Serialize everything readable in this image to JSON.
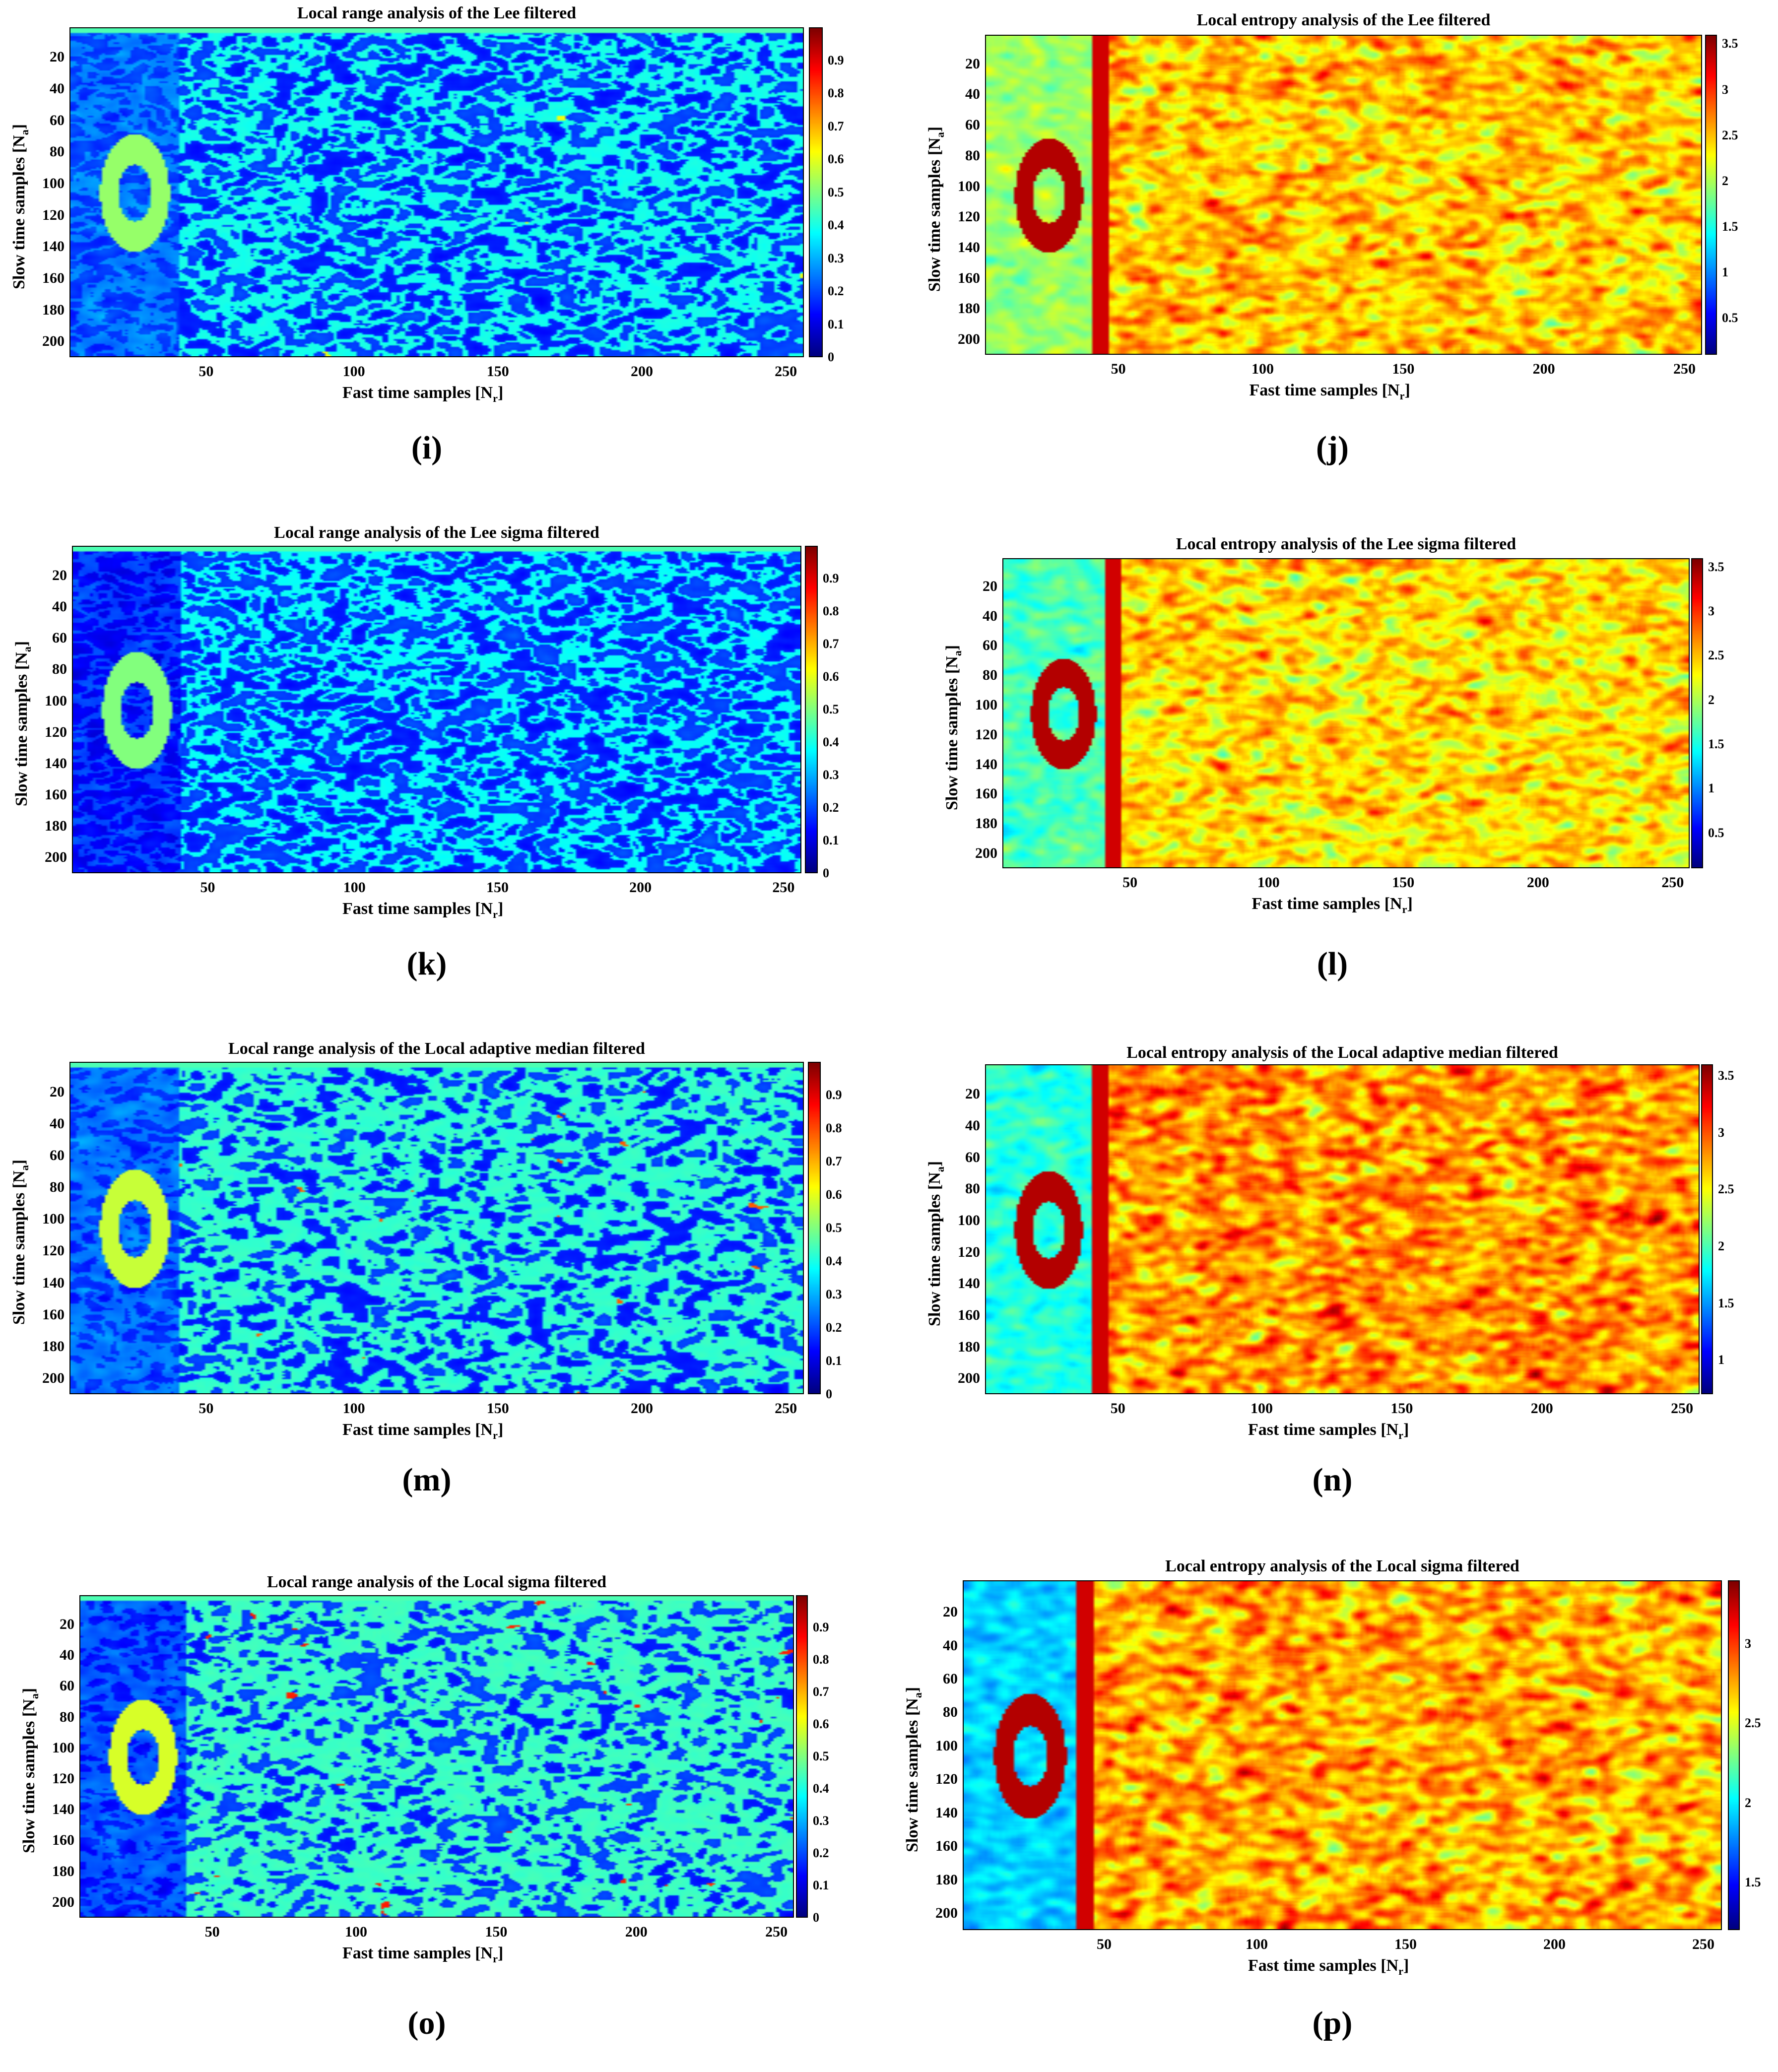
{
  "figure": {
    "x_label_prefix": "Fast time samples [N",
    "x_label_sub": "r",
    "x_label_suffix": "]",
    "y_label_prefix": "Slow time samples [N",
    "y_label_sub": "a",
    "y_label_suffix": "]"
  },
  "chart_data": [
    {
      "type": "heatmap",
      "panel_label": "(i)",
      "title": "Local range analysis of the Lee filtered",
      "x_ticks": [
        50,
        100,
        150,
        200,
        250
      ],
      "y_ticks": [
        20,
        40,
        60,
        80,
        100,
        120,
        140,
        160,
        180,
        200
      ],
      "xlim": [
        1,
        256
      ],
      "ylim": [
        1,
        210
      ],
      "colorbar_ticks": [
        "0",
        "0.1",
        "0.2",
        "0.3",
        "0.4",
        "0.5",
        "0.6",
        "0.7",
        "0.8",
        "0.9"
      ],
      "colorbar_range": [
        0,
        1
      ],
      "colormap": "jet",
      "metric": "range",
      "intensity": 0.18,
      "left_region_level": 0.22
    },
    {
      "type": "heatmap",
      "panel_label": "(j)",
      "title": "Local entropy analysis of the Lee filtered",
      "x_ticks": [
        50,
        100,
        150,
        200,
        250
      ],
      "y_ticks": [
        20,
        40,
        60,
        80,
        100,
        120,
        140,
        160,
        180,
        200
      ],
      "xlim": [
        1,
        256
      ],
      "ylim": [
        1,
        210
      ],
      "colorbar_ticks": [
        "0.5",
        "1",
        "1.5",
        "2",
        "2.5",
        "3",
        "3.5"
      ],
      "colorbar_range": [
        0.1,
        3.6
      ],
      "colormap": "jet",
      "metric": "entropy",
      "intensity": 0.72,
      "left_region_level": 0.42
    },
    {
      "type": "heatmap",
      "panel_label": "(k)",
      "title": "Local range analysis of the Lee sigma filtered",
      "x_ticks": [
        50,
        100,
        150,
        200,
        250
      ],
      "y_ticks": [
        20,
        40,
        60,
        80,
        100,
        120,
        140,
        160,
        180,
        200
      ],
      "xlim": [
        1,
        256
      ],
      "ylim": [
        1,
        210
      ],
      "colorbar_ticks": [
        "0",
        "0.1",
        "0.2",
        "0.3",
        "0.4",
        "0.5",
        "0.6",
        "0.7",
        "0.8",
        "0.9"
      ],
      "colorbar_range": [
        0,
        1
      ],
      "colormap": "jet",
      "metric": "range",
      "intensity": 0.13,
      "left_region_level": 0.12
    },
    {
      "type": "heatmap",
      "panel_label": "(l)",
      "title": "Local entropy analysis of the Lee sigma filtered",
      "x_ticks": [
        50,
        100,
        150,
        200,
        250
      ],
      "y_ticks": [
        20,
        40,
        60,
        80,
        100,
        120,
        140,
        160,
        180,
        200
      ],
      "xlim": [
        1,
        256
      ],
      "ylim": [
        1,
        210
      ],
      "colorbar_ticks": [
        "0.5",
        "1",
        "1.5",
        "2",
        "2.5",
        "3",
        "3.5"
      ],
      "colorbar_range": [
        0.1,
        3.6
      ],
      "colormap": "jet",
      "metric": "entropy",
      "intensity": 0.6,
      "left_region_level": 0.33
    },
    {
      "type": "heatmap",
      "panel_label": "(m)",
      "title": "Local range analysis of the Local adaptive median filtered",
      "x_ticks": [
        50,
        100,
        150,
        200,
        250
      ],
      "y_ticks": [
        20,
        40,
        60,
        80,
        100,
        120,
        140,
        160,
        180,
        200
      ],
      "xlim": [
        1,
        256
      ],
      "ylim": [
        1,
        210
      ],
      "colorbar_ticks": [
        "0",
        "0.1",
        "0.2",
        "0.3",
        "0.4",
        "0.5",
        "0.6",
        "0.7",
        "0.8",
        "0.9"
      ],
      "colorbar_range": [
        0,
        1
      ],
      "colormap": "jet",
      "metric": "range",
      "intensity": 0.3,
      "left_region_level": 0.2
    },
    {
      "type": "heatmap",
      "panel_label": "(n)",
      "title": "Local entropy analysis of the Local adaptive median filtered",
      "x_ticks": [
        50,
        100,
        150,
        200,
        250
      ],
      "y_ticks": [
        20,
        40,
        60,
        80,
        100,
        120,
        140,
        160,
        180,
        200
      ],
      "xlim": [
        1,
        256
      ],
      "ylim": [
        1,
        210
      ],
      "colorbar_ticks": [
        "1",
        "1.5",
        "2",
        "2.5",
        "3",
        "3.5"
      ],
      "colorbar_range": [
        0.7,
        3.6
      ],
      "colormap": "jet",
      "metric": "entropy",
      "intensity": 0.8,
      "left_region_level": 0.3
    },
    {
      "type": "heatmap",
      "panel_label": "(o)",
      "title": "Local range analysis of the Local sigma filtered",
      "x_ticks": [
        50,
        100,
        150,
        200,
        250
      ],
      "y_ticks": [
        20,
        40,
        60,
        80,
        100,
        120,
        140,
        160,
        180,
        200
      ],
      "xlim": [
        1,
        256
      ],
      "ylim": [
        1,
        210
      ],
      "colorbar_ticks": [
        "0",
        "0.1",
        "0.2",
        "0.3",
        "0.4",
        "0.5",
        "0.6",
        "0.7",
        "0.8",
        "0.9"
      ],
      "colorbar_range": [
        0,
        1
      ],
      "colormap": "jet",
      "metric": "range",
      "intensity": 0.34,
      "left_region_level": 0.15
    },
    {
      "type": "heatmap",
      "panel_label": "(p)",
      "title": "Local entropy analysis of the Local sigma filtered",
      "x_ticks": [
        50,
        100,
        150,
        200,
        250
      ],
      "y_ticks": [
        20,
        40,
        60,
        80,
        100,
        120,
        140,
        160,
        180,
        200
      ],
      "xlim": [
        1,
        256
      ],
      "ylim": [
        1,
        210
      ],
      "colorbar_ticks": [
        "1.5",
        "2",
        "2.5",
        "3"
      ],
      "colorbar_range": [
        1.2,
        3.4
      ],
      "colormap": "jet",
      "metric": "entropy",
      "intensity": 0.78,
      "left_region_level": 0.22
    }
  ]
}
